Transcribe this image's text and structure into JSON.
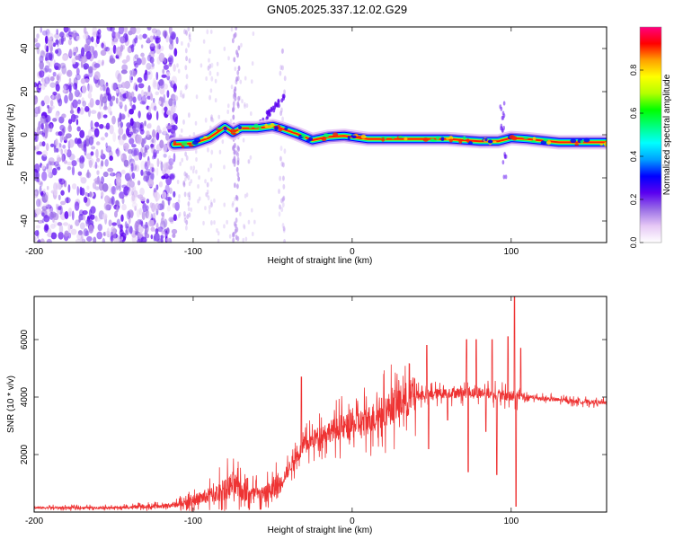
{
  "title": "GN05.2025.337.12.02.G29",
  "chart_data": [
    {
      "type": "heatmap",
      "xlabel": "Height of straight line (km)",
      "ylabel": "Frequency (Hz)",
      "xlim": [
        -200,
        160
      ],
      "ylim": [
        -50,
        50
      ],
      "xticks": [
        -200,
        -100,
        0,
        100
      ],
      "yticks": [
        -40,
        -20,
        0,
        20,
        40
      ],
      "colorbar": {
        "label": "Normalized spectral amplitude",
        "range": [
          0,
          1
        ],
        "ticks": [
          0.0,
          0.2,
          0.4,
          0.6,
          0.8
        ],
        "colors": [
          "#ffffff",
          "#e6c8f5",
          "#9a6ee6",
          "#5a00f0",
          "#0000ff",
          "#00a0ff",
          "#00ffff",
          "#00ff80",
          "#00ff00",
          "#b4ff00",
          "#ffff00",
          "#ffa000",
          "#ff0000",
          "#ff0080"
        ]
      },
      "ridge": {
        "description": "dominant frequency track",
        "points": [
          [
            -112,
            -4.5
          ],
          [
            -100,
            -4
          ],
          [
            -90,
            -1.5
          ],
          [
            -80,
            3.5
          ],
          [
            -75,
            1
          ],
          [
            -70,
            3
          ],
          [
            -60,
            3
          ],
          [
            -50,
            4
          ],
          [
            -45,
            3
          ],
          [
            -35,
            0.5
          ],
          [
            -25,
            -2.5
          ],
          [
            -15,
            -1
          ],
          [
            -5,
            -0.5
          ],
          [
            10,
            -2
          ],
          [
            40,
            -2
          ],
          [
            60,
            -2
          ],
          [
            80,
            -3
          ],
          [
            92,
            -3
          ],
          [
            100,
            -1.5
          ],
          [
            110,
            -2
          ],
          [
            130,
            -3.5
          ],
          [
            160,
            -3.5
          ]
        ]
      }
    },
    {
      "type": "line",
      "xlabel": "Height of straight line (km)",
      "ylabel": "SNR (10 * v/v)",
      "xlim": [
        -200,
        160
      ],
      "ylim": [
        0,
        7500
      ],
      "xticks": [
        -200,
        -100,
        0,
        100
      ],
      "yticks": [
        2000,
        4000,
        6000
      ],
      "color": "#ee3333",
      "envelope": [
        {
          "x": -200,
          "y": 150
        },
        {
          "x": -150,
          "y": 150
        },
        {
          "x": -120,
          "y": 200
        },
        {
          "x": -105,
          "y": 300
        },
        {
          "x": -95,
          "y": 500
        },
        {
          "x": -85,
          "y": 650
        },
        {
          "x": -75,
          "y": 950
        },
        {
          "x": -65,
          "y": 600
        },
        {
          "x": -55,
          "y": 600
        },
        {
          "x": -45,
          "y": 1000
        },
        {
          "x": -38,
          "y": 1700
        },
        {
          "x": -30,
          "y": 2300
        },
        {
          "x": -20,
          "y": 2700
        },
        {
          "x": -10,
          "y": 2900
        },
        {
          "x": 0,
          "y": 3000
        },
        {
          "x": 10,
          "y": 3200
        },
        {
          "x": 20,
          "y": 3500
        },
        {
          "x": 30,
          "y": 3800
        },
        {
          "x": 40,
          "y": 4050
        },
        {
          "x": 50,
          "y": 4100
        },
        {
          "x": 60,
          "y": 4150
        },
        {
          "x": 70,
          "y": 4150
        },
        {
          "x": 80,
          "y": 4150
        },
        {
          "x": 90,
          "y": 4100
        },
        {
          "x": 100,
          "y": 4000
        },
        {
          "x": 110,
          "y": 4000
        },
        {
          "x": 120,
          "y": 3950
        },
        {
          "x": 140,
          "y": 3850
        },
        {
          "x": 160,
          "y": 3800
        }
      ],
      "spikes": [
        {
          "x": -32,
          "y": 4700
        },
        {
          "x": 47,
          "y": 5800
        },
        {
          "x": 72,
          "y": 6000
        },
        {
          "x": 78,
          "y": 6000
        },
        {
          "x": 88,
          "y": 6000
        },
        {
          "x": 98,
          "y": 6100
        },
        {
          "x": 102,
          "y": 7500
        },
        {
          "x": 106,
          "y": 5700
        }
      ],
      "dips": [
        {
          "x": 48,
          "y": 2200
        },
        {
          "x": 60,
          "y": 3200
        },
        {
          "x": 73,
          "y": 1400
        },
        {
          "x": 84,
          "y": 2800
        },
        {
          "x": 91,
          "y": 1300
        },
        {
          "x": 103,
          "y": 200
        }
      ]
    }
  ]
}
